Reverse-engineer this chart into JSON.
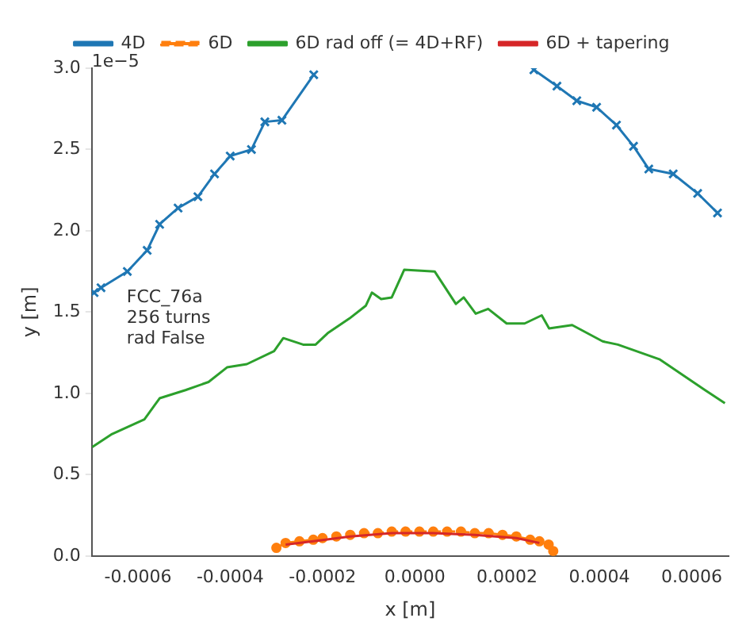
{
  "chart_data": {
    "type": "line",
    "xlabel": "x [m]",
    "ylabel": "y [m]",
    "annotations": [
      "1e−5",
      "FCC_76a\n256 turns\nrad False"
    ],
    "xlim": [
      -0.0007,
      0.00068
    ],
    "xticks": [
      -0.0006,
      -0.0004,
      -0.0002,
      {
        "value": 0,
        "label": "0.0000"
      },
      0.0002,
      0.0004,
      0.0006
    ],
    "ylim": [
      0,
      3
    ],
    "yticks": [
      {
        "value": 0,
        "label": "0.0"
      },
      0.5,
      {
        "value": 1,
        "label": "1.0"
      },
      1.5,
      {
        "value": 2,
        "label": "2.0"
      },
      2.5,
      {
        "value": 3,
        "label": "3.0"
      }
    ],
    "grid": false,
    "legend": "top",
    "series": [
      {
        "name": "4D",
        "color": "#1f77b4",
        "marker": "cross",
        "line_style": "solid",
        "x": [
          -0.000695,
          -0.00068,
          -0.000623,
          -0.00058,
          -0.000553,
          -0.000513,
          -0.00047,
          -0.000434,
          -0.0004,
          -0.000354,
          -0.000325,
          -0.000288,
          -0.000219,
          0,
          0.000258,
          0.000308,
          0.000351,
          0.000394,
          0.000437,
          0.000474,
          0.000507,
          0.00056,
          0.000613,
          0.000656
        ],
        "values": [
          1.62,
          1.65,
          1.75,
          1.88,
          2.04,
          2.14,
          2.21,
          2.35,
          2.46,
          2.5,
          2.67,
          2.68,
          2.96,
          null,
          2.99,
          2.89,
          2.8,
          2.76,
          2.65,
          2.52,
          2.38,
          2.35,
          2.23,
          2.11
        ]
      },
      {
        "name": "6D",
        "color": "#ff7f0e",
        "marker": "circle",
        "line_style": "dashed",
        "x": [
          -0.0003,
          -0.00028,
          -0.00025,
          -0.00022,
          -0.0002,
          -0.00017,
          -0.00014,
          -0.00011,
          -8e-05,
          -5e-05,
          -2e-05,
          1e-05,
          4e-05,
          7e-05,
          0.0001,
          0.00013,
          0.00016,
          0.00019,
          0.00022,
          0.00025,
          0.00027,
          0.00029,
          0.0003
        ],
        "values": [
          0.05,
          0.08,
          0.09,
          0.1,
          0.11,
          0.12,
          0.13,
          0.14,
          0.14,
          0.15,
          0.15,
          0.15,
          0.15,
          0.15,
          0.15,
          0.14,
          0.14,
          0.13,
          0.12,
          0.1,
          0.09,
          0.07,
          0.03
        ]
      },
      {
        "name": "6D rad off (= 4D+RF)",
        "color": "#2ca02c",
        "marker": "none",
        "line_style": "solid",
        "x": [
          -0.000699,
          -0.000656,
          -0.000586,
          -0.000553,
          -0.000497,
          -0.000447,
          -0.000407,
          -0.000364,
          -0.000305,
          -0.000285,
          -0.000242,
          -0.000215,
          -0.000189,
          -0.000142,
          -0.000106,
          -9.3e-05,
          -7.3e-05,
          -5e-05,
          -2.3e-05,
          4.3e-05,
          8.9e-05,
          0.000106,
          0.000132,
          0.000159,
          0.000199,
          0.000238,
          0.000275,
          0.000291,
          0.000341,
          0.000407,
          0.00044,
          0.00053,
          0.000629,
          0.000672
        ],
        "values": [
          0.67,
          0.75,
          0.84,
          0.97,
          1.02,
          1.07,
          1.16,
          1.18,
          1.26,
          1.34,
          1.3,
          1.3,
          1.37,
          1.46,
          1.54,
          1.62,
          1.58,
          1.59,
          1.76,
          1.75,
          1.55,
          1.59,
          1.49,
          1.52,
          1.43,
          1.43,
          1.48,
          1.4,
          1.42,
          1.32,
          1.3,
          1.21,
          1.02,
          0.94
        ]
      },
      {
        "name": "6D + tapering",
        "color": "#d62728",
        "marker": "none",
        "line_style": "solid",
        "x": [
          -0.00028,
          -0.00022,
          -0.00014,
          -5e-05,
          4e-05,
          0.00013,
          0.00022,
          0.00027
        ],
        "values": [
          0.07,
          0.09,
          0.12,
          0.14,
          0.14,
          0.13,
          0.11,
          0.08
        ]
      }
    ]
  }
}
